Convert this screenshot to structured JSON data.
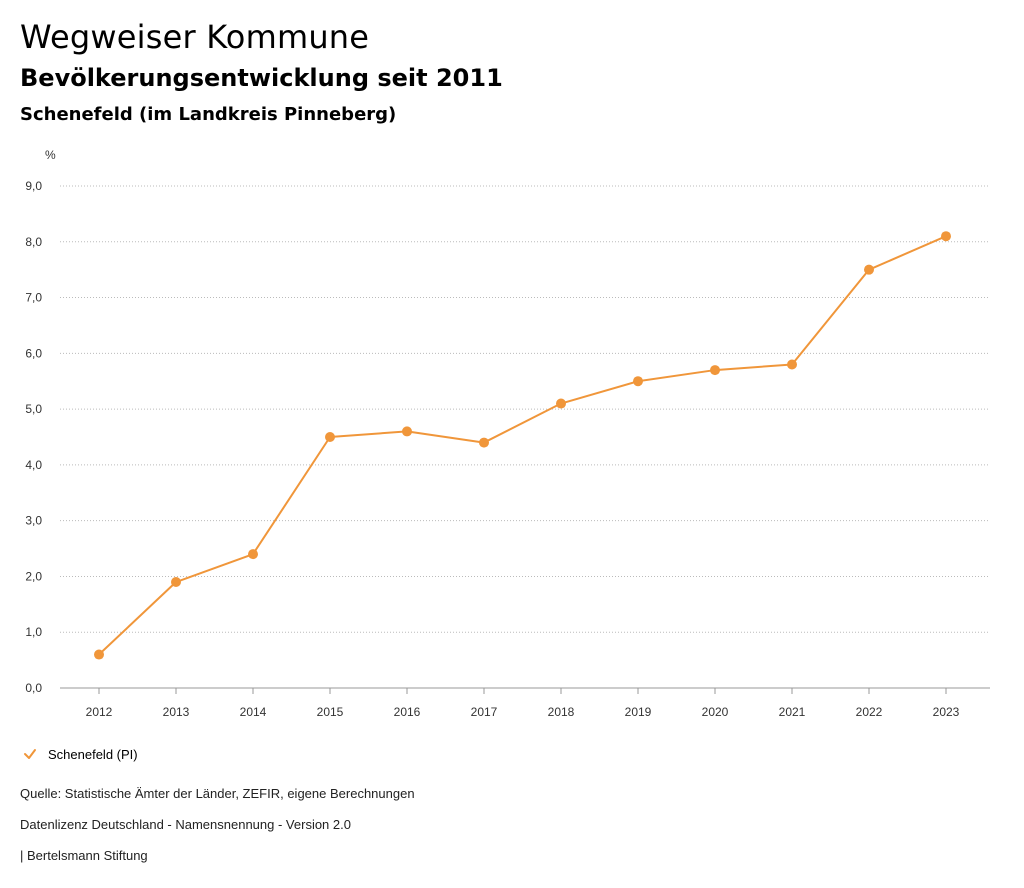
{
  "header": {
    "title": "Wegweiser Kommune",
    "subtitle": "Bevölkerungsentwicklung seit 2011",
    "region": "Schenefeld (im Landkreis Pinneberg)"
  },
  "chart_data": {
    "type": "line",
    "title": "Bevölkerungsentwicklung seit 2011",
    "xlabel": "",
    "ylabel": "%",
    "x": [
      "2012",
      "2013",
      "2014",
      "2015",
      "2016",
      "2017",
      "2018",
      "2019",
      "2020",
      "2021",
      "2022",
      "2023"
    ],
    "series": [
      {
        "name": "Schenefeld (PI)",
        "color": "#f0963a",
        "values": [
          0.6,
          1.9,
          2.4,
          4.5,
          4.6,
          4.4,
          5.1,
          5.5,
          5.7,
          5.8,
          7.5,
          8.1
        ]
      }
    ],
    "ylim": [
      0,
      9
    ],
    "yticks": [
      "0,0",
      "1,0",
      "2,0",
      "3,0",
      "4,0",
      "5,0",
      "6,0",
      "7,0",
      "8,0",
      "9,0"
    ],
    "grid": true,
    "legend_position": "bottom-left"
  },
  "legend": {
    "label": "Schenefeld (PI)",
    "icon": "check-icon"
  },
  "footer": {
    "source": "Quelle: Statistische Ämter der Länder, ZEFIR, eigene Berechnungen",
    "license": "Datenlizenz Deutschland - Namensnennung - Version 2.0",
    "publisher": "| Bertelsmann Stiftung"
  }
}
